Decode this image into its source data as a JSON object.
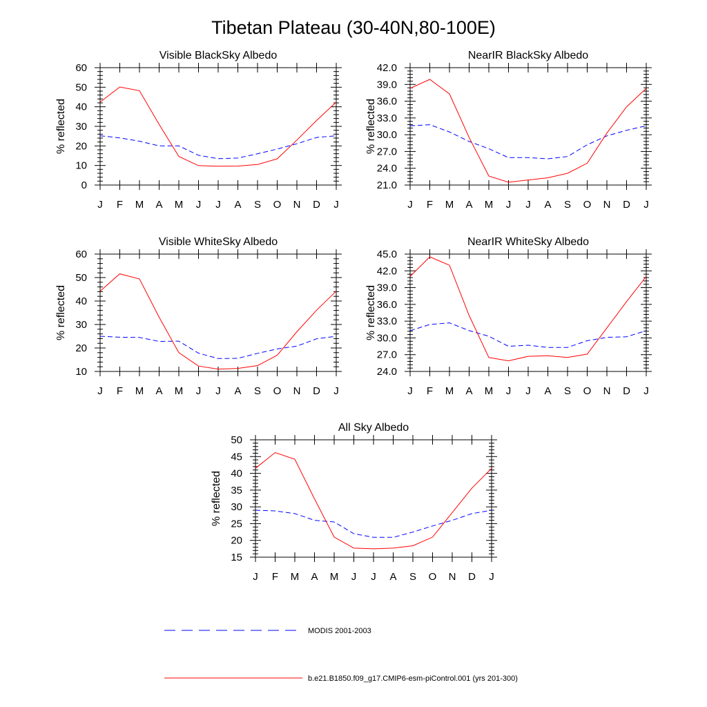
{
  "figure": {
    "title": "Tibetan Plateau (30-40N,80-100E)",
    "colors": {
      "modis": "#0000ff",
      "model": "#ff0000",
      "axes": "#000000"
    },
    "legend": [
      {
        "label": "MODIS 2001-2003",
        "color": "#0000ff",
        "style": "dashed"
      },
      {
        "label": "b.e21.B1850.f09_g17.CMIP6-esm-piControl.001 (yrs 201-300)",
        "color": "#ff0000",
        "style": "solid"
      }
    ]
  },
  "chart_data": [
    {
      "type": "line",
      "title": "Visible BlackSky Albedo",
      "ylabel": "% reflected",
      "xlabel": "",
      "categories": [
        "J",
        "F",
        "M",
        "A",
        "M",
        "J",
        "J",
        "A",
        "S",
        "O",
        "N",
        "D",
        "J"
      ],
      "ylim": [
        0,
        60
      ],
      "yticks": [
        "0",
        "10",
        "20",
        "30",
        "40",
        "50",
        "60"
      ],
      "grid": false,
      "series": [
        {
          "name": "MODIS 2001-2003",
          "style": "dashed",
          "color": "#0000ff",
          "values": [
            25.2,
            24.1,
            22.4,
            20.0,
            20.0,
            15.2,
            13.5,
            13.8,
            16.0,
            18.4,
            21.1,
            24.3,
            25.2
          ]
        },
        {
          "name": "b.e21.B1850.f09_g17.CMIP6-esm-piControl.001 (yrs 201-300)",
          "style": "solid",
          "color": "#ff0000",
          "values": [
            42.4,
            50.1,
            48.2,
            31.0,
            14.6,
            9.9,
            9.6,
            9.7,
            10.5,
            13.4,
            23.0,
            33.0,
            42.4
          ]
        }
      ]
    },
    {
      "type": "line",
      "title": "NearIR BlackSky Albedo",
      "ylabel": "% reflected",
      "xlabel": "",
      "categories": [
        "J",
        "F",
        "M",
        "A",
        "M",
        "J",
        "J",
        "A",
        "S",
        "O",
        "N",
        "D",
        "J"
      ],
      "ylim": [
        21.0,
        42.0
      ],
      "yticks": [
        "21.0",
        "24.0",
        "27.0",
        "30.0",
        "33.0",
        "36.0",
        "39.0",
        "42.0"
      ],
      "grid": false,
      "series": [
        {
          "name": "MODIS 2001-2003",
          "style": "dashed",
          "color": "#0000ff",
          "values": [
            31.6,
            31.8,
            30.5,
            28.8,
            27.5,
            25.9,
            25.9,
            25.7,
            26.1,
            28.2,
            29.8,
            30.8,
            31.6
          ]
        },
        {
          "name": "b.e21.B1850.f09_g17.CMIP6-esm-piControl.001 (yrs 201-300)",
          "style": "solid",
          "color": "#ff0000",
          "values": [
            38.3,
            39.9,
            37.3,
            29.5,
            22.6,
            21.5,
            21.9,
            22.3,
            23.1,
            24.9,
            30.3,
            35.0,
            38.3
          ]
        }
      ]
    },
    {
      "type": "line",
      "title": "Visible WhiteSky Albedo",
      "ylabel": "% reflected",
      "xlabel": "",
      "categories": [
        "J",
        "F",
        "M",
        "A",
        "M",
        "J",
        "J",
        "A",
        "S",
        "O",
        "N",
        "D",
        "J"
      ],
      "ylim": [
        10,
        60
      ],
      "yticks": [
        "10",
        "20",
        "30",
        "40",
        "50",
        "60"
      ],
      "grid": false,
      "series": [
        {
          "name": "MODIS 2001-2003",
          "style": "dashed",
          "color": "#0000ff",
          "values": [
            25.0,
            24.6,
            24.5,
            22.8,
            22.9,
            17.8,
            15.5,
            15.6,
            17.7,
            19.6,
            20.8,
            23.9,
            25.0
          ]
        },
        {
          "name": "b.e21.B1850.f09_g17.CMIP6-esm-piControl.001 (yrs 201-300)",
          "style": "solid",
          "color": "#ff0000",
          "values": [
            44.2,
            51.6,
            49.4,
            33.1,
            18.0,
            12.3,
            11.0,
            11.3,
            12.5,
            16.9,
            26.9,
            36.1,
            44.2
          ]
        }
      ]
    },
    {
      "type": "line",
      "title": "NearIR WhiteSky Albedo",
      "ylabel": "% reflected",
      "xlabel": "",
      "categories": [
        "J",
        "F",
        "M",
        "A",
        "M",
        "J",
        "J",
        "A",
        "S",
        "O",
        "N",
        "D",
        "J"
      ],
      "ylim": [
        24.0,
        45.0
      ],
      "yticks": [
        "24.0",
        "27.0",
        "30.0",
        "33.0",
        "36.0",
        "39.0",
        "42.0",
        "45.0"
      ],
      "grid": false,
      "series": [
        {
          "name": "MODIS 2001-2003",
          "style": "dashed",
          "color": "#0000ff",
          "values": [
            31.3,
            32.4,
            32.7,
            31.3,
            30.3,
            28.5,
            28.7,
            28.3,
            28.3,
            29.5,
            30.1,
            30.2,
            31.3
          ]
        },
        {
          "name": "b.e21.B1850.f09_g17.CMIP6-esm-piControl.001 (yrs 201-300)",
          "style": "solid",
          "color": "#ff0000",
          "values": [
            41.0,
            44.5,
            43.0,
            34.0,
            26.5,
            25.9,
            26.7,
            26.8,
            26.5,
            27.1,
            31.8,
            36.5,
            41.0
          ]
        }
      ]
    },
    {
      "type": "line",
      "title": "All Sky Albedo",
      "ylabel": "% reflected",
      "xlabel": "",
      "categories": [
        "J",
        "F",
        "M",
        "A",
        "M",
        "J",
        "J",
        "A",
        "S",
        "O",
        "N",
        "D",
        "J"
      ],
      "ylim": [
        15,
        50
      ],
      "yticks": [
        "15",
        "20",
        "25",
        "30",
        "35",
        "40",
        "45",
        "50"
      ],
      "grid": false,
      "series": [
        {
          "name": "MODIS 2001-2003",
          "style": "dashed",
          "color": "#0000ff",
          "values": [
            29.0,
            28.8,
            28.0,
            26.0,
            25.5,
            22.0,
            20.9,
            20.9,
            22.5,
            24.3,
            26.0,
            28.0,
            29.0
          ]
        },
        {
          "name": "b.e21.B1850.f09_g17.CMIP6-esm-piControl.001 (yrs 201-300)",
          "style": "solid",
          "color": "#ff0000",
          "values": [
            41.5,
            46.2,
            44.2,
            32.4,
            21.0,
            17.7,
            17.5,
            17.7,
            18.4,
            21.0,
            28.3,
            35.6,
            41.5
          ]
        }
      ]
    }
  ]
}
